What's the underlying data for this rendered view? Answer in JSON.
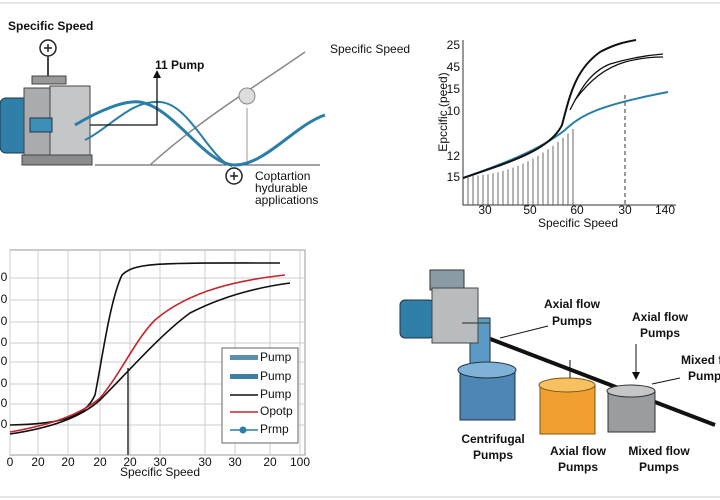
{
  "top_left": {
    "title": "Specific Speed",
    "pump_label": "11 Pump",
    "curve_label": "Specific Speed",
    "note": [
      "Coptartion",
      "hydurable",
      "applications"
    ]
  },
  "top_right": {
    "y_label": "Epccific (peed)",
    "y_ticks": [
      "25",
      "45",
      "15",
      "10",
      "12",
      "15"
    ],
    "x_ticks": [
      "30",
      "50",
      "60",
      "30",
      "140"
    ],
    "x_label": "Specific Speed"
  },
  "bottom_left": {
    "y_ticks": [
      "0",
      "0",
      "0",
      "0",
      "0",
      "0",
      "0",
      "0"
    ],
    "x_ticks": [
      "0",
      "20",
      "20",
      "20",
      "20",
      "30",
      "30",
      "30",
      "20",
      "100"
    ],
    "x_label": "Specific Speed",
    "legend": [
      "Pump",
      "Pump",
      "Pump",
      "Opotp",
      "Prmp"
    ]
  },
  "bottom_right": {
    "labels": [
      [
        "Axial flow",
        "Pumps"
      ],
      [
        "Axial flow",
        "Pumps"
      ],
      [
        "Mixed f",
        "Pump"
      ],
      [
        "Centrifugal",
        "Pumps"
      ],
      [
        "Axial flow",
        "Pumps"
      ],
      [
        "Mixed flow",
        "Pumps"
      ]
    ]
  }
}
